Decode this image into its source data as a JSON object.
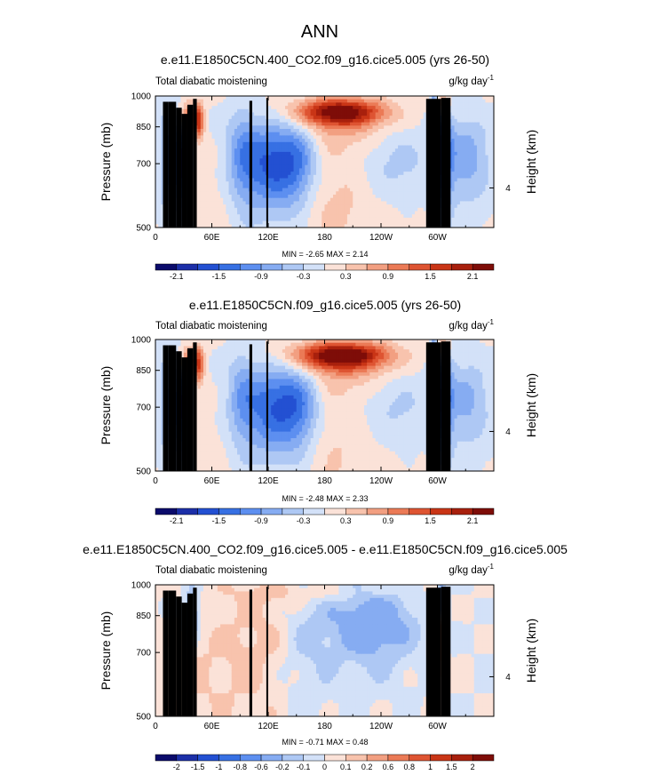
{
  "figure": {
    "title": "ANN",
    "colors": {
      "land_mask": "#000000",
      "frame": "#000000"
    }
  },
  "chart_data": [
    {
      "type": "heatmap",
      "title": "e.e11.E1850C5CN.400_CO2.f09_g16.cice5.005 (yrs 26-50)",
      "left_label": "Total diabatic moistening",
      "right_label": "g/kg day",
      "right_label_sup": "-1",
      "ylabel": "Pressure (mb)",
      "ylabel_right": "Height (km)",
      "x_ticks": [
        "0",
        "60E",
        "120E",
        "180",
        "120W",
        "60W"
      ],
      "x_tick_lon": [
        0,
        60,
        120,
        180,
        240,
        300
      ],
      "xlim": [
        0,
        360
      ],
      "y_ticks": [
        "500",
        "700",
        "850",
        "1000"
      ],
      "y_tick_p": [
        500,
        700,
        850,
        1000
      ],
      "ylim": [
        1000,
        500
      ],
      "right_ticks": [
        "4"
      ],
      "right_tick_p": [
        616
      ],
      "min_label": "MIN =  -2.65  MAX =  2.14",
      "colorbar_labels": [
        "-2.1",
        "-1.5",
        "-0.9",
        "-0.3",
        "0.3",
        "0.9",
        "1.5",
        "2.1"
      ],
      "levels": [
        -2.4,
        -2.1,
        -1.8,
        -1.5,
        -1.2,
        -0.9,
        -0.6,
        -0.3,
        0,
        0.3,
        0.6,
        0.9,
        1.2,
        1.5,
        1.8,
        2.1,
        2.4
      ],
      "grid": false
    },
    {
      "type": "heatmap",
      "title": "e.e11.E1850C5CN.f09_g16.cice5.005 (yrs 26-50)",
      "left_label": "Total diabatic moistening",
      "right_label": "g/kg day",
      "right_label_sup": "-1",
      "ylabel": "Pressure (mb)",
      "ylabel_right": "Height (km)",
      "x_ticks": [
        "0",
        "60E",
        "120E",
        "180",
        "120W",
        "60W"
      ],
      "x_tick_lon": [
        0,
        60,
        120,
        180,
        240,
        300
      ],
      "xlim": [
        0,
        360
      ],
      "y_ticks": [
        "500",
        "700",
        "850",
        "1000"
      ],
      "y_tick_p": [
        500,
        700,
        850,
        1000
      ],
      "ylim": [
        1000,
        500
      ],
      "right_ticks": [
        "4"
      ],
      "right_tick_p": [
        616
      ],
      "min_label": "MIN =  -2.48  MAX =  2.33",
      "colorbar_labels": [
        "-2.1",
        "-1.5",
        "-0.9",
        "-0.3",
        "0.3",
        "0.9",
        "1.5",
        "2.1"
      ],
      "levels": [
        -2.4,
        -2.1,
        -1.8,
        -1.5,
        -1.2,
        -0.9,
        -0.6,
        -0.3,
        0,
        0.3,
        0.6,
        0.9,
        1.2,
        1.5,
        1.8,
        2.1,
        2.4
      ],
      "grid": false
    },
    {
      "type": "heatmap",
      "title": "e.e11.E1850C5CN.400_CO2.f09_g16.cice5.005 - e.e11.E1850C5CN.f09_g16.cice5.005",
      "left_label": "Total diabatic moistening",
      "right_label": "g/kg day",
      "right_label_sup": "-1",
      "ylabel": "Pressure (mb)",
      "ylabel_right": "Height (km)",
      "x_ticks": [
        "0",
        "60E",
        "120E",
        "180",
        "120W",
        "60W"
      ],
      "x_tick_lon": [
        0,
        60,
        120,
        180,
        240,
        300
      ],
      "xlim": [
        0,
        360
      ],
      "y_ticks": [
        "500",
        "700",
        "850",
        "1000"
      ],
      "y_tick_p": [
        500,
        700,
        850,
        1000
      ],
      "ylim": [
        1000,
        500
      ],
      "right_ticks": [
        "4"
      ],
      "right_tick_p": [
        616
      ],
      "min_label": "MIN =  -0.71  MAX =  0.48",
      "colorbar_labels": [
        "-2",
        "-1.5",
        "-1",
        "-0.8",
        "-0.6",
        "-0.2",
        "-0.1",
        "0",
        "0.1",
        "0.2",
        "0.6",
        "0.8",
        "1",
        "1.5",
        "2"
      ],
      "levels": [
        -2.5,
        -2,
        -1.5,
        -1,
        -0.8,
        -0.6,
        -0.2,
        -0.1,
        0,
        0.1,
        0.2,
        0.6,
        0.8,
        1,
        1.5,
        2,
        2.5
      ],
      "grid": false
    }
  ],
  "palette": [
    "#0b0b6b",
    "#1c2fa8",
    "#2350d2",
    "#3770e3",
    "#5d8ff0",
    "#86acf2",
    "#aec8f4",
    "#d3e1f8",
    "#fbe2d8",
    "#f8c3ad",
    "#f29f81",
    "#eb7a56",
    "#de5432",
    "#c93516",
    "#a8200d",
    "#7e0d08"
  ]
}
